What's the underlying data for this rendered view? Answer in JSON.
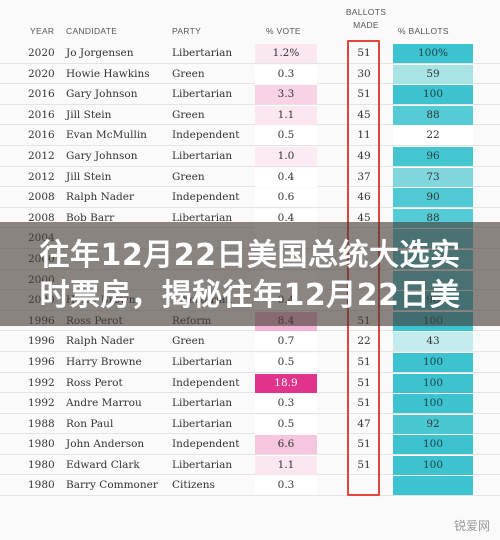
{
  "headers": {
    "year": "YEAR",
    "candidate": "CANDIDATE",
    "party": "PARTY",
    "vote": "% VOTE",
    "ballots_made_line1": "BALLOTS",
    "ballots_made_line2": "MADE",
    "ballots_pct": "% BALLOTS"
  },
  "rows": [
    {
      "year": "2020",
      "candidate": "Jo Jorgensen",
      "party": "Libertarian",
      "vote": "1.2%",
      "made": "51",
      "pct": "100%",
      "vote_color": "#fbe7f0",
      "pct_color": "#3cc3cf"
    },
    {
      "year": "2020",
      "candidate": "Howie Hawkins",
      "party": "Green",
      "vote": "0.3",
      "made": "30",
      "pct": "59",
      "vote_color": "#ffffff",
      "pct_color": "#a8e3e6"
    },
    {
      "year": "2016",
      "candidate": "Gary Johnson",
      "party": "Libertarian",
      "vote": "3.3",
      "made": "51",
      "pct": "100",
      "vote_color": "#f7d3e5",
      "pct_color": "#3cc3cf"
    },
    {
      "year": "2016",
      "candidate": "Jill Stein",
      "party": "Green",
      "vote": "1.1",
      "made": "45",
      "pct": "88",
      "vote_color": "#fbe7f0",
      "pct_color": "#55cbd5"
    },
    {
      "year": "2016",
      "candidate": "Evan McMullin",
      "party": "Independent",
      "vote": "0.5",
      "made": "11",
      "pct": "22",
      "vote_color": "#ffffff",
      "pct_color": "#ffffff"
    },
    {
      "year": "2012",
      "candidate": "Gary Johnson",
      "party": "Libertarian",
      "vote": "1.0",
      "made": "49",
      "pct": "96",
      "vote_color": "#fcebf3",
      "pct_color": "#44c6d1"
    },
    {
      "year": "2012",
      "candidate": "Jill Stein",
      "party": "Green",
      "vote": "0.4",
      "made": "37",
      "pct": "73",
      "vote_color": "#ffffff",
      "pct_color": "#7fd6dc"
    },
    {
      "year": "2008",
      "candidate": "Ralph Nader",
      "party": "Independent",
      "vote": "0.6",
      "made": "46",
      "pct": "90",
      "vote_color": "#ffffff",
      "pct_color": "#4fc9d3"
    },
    {
      "year": "2008",
      "candidate": "Bob Barr",
      "party": "Libertarian",
      "vote": "0.4",
      "made": "45",
      "pct": "88",
      "vote_color": "#ffffff",
      "pct_color": "#55cbd5"
    },
    {
      "year": "2004",
      "candidate": "",
      "party": "",
      "vote": "",
      "made": "",
      "pct": "",
      "vote_color": "#ffffff",
      "pct_color": "#55cbd5"
    },
    {
      "year": "2000",
      "candidate": "",
      "party": "",
      "vote": "",
      "made": "",
      "pct": "",
      "vote_color": "#ffffff",
      "pct_color": "#55cbd5"
    },
    {
      "year": "2000",
      "candidate": "",
      "party": "",
      "vote": "",
      "made": "",
      "pct": "",
      "vote_color": "#ffffff",
      "pct_color": "#55cbd5"
    },
    {
      "year": "2000",
      "candidate": "Harry Browne",
      "party": "Libertarian",
      "vote": "0.4",
      "made": "",
      "pct": "96",
      "vote_color": "#ffffff",
      "pct_color": "#44c6d1"
    },
    {
      "year": "1996",
      "candidate": "Ross Perot",
      "party": "Reform",
      "vote": "8.4",
      "made": "51",
      "pct": "100",
      "vote_color": "#f4b6d6",
      "pct_color": "#3cc3cf"
    },
    {
      "year": "1996",
      "candidate": "Ralph Nader",
      "party": "Green",
      "vote": "0.7",
      "made": "22",
      "pct": "43",
      "vote_color": "#ffffff",
      "pct_color": "#c4ecee"
    },
    {
      "year": "1996",
      "candidate": "Harry Browne",
      "party": "Libertarian",
      "vote": "0.5",
      "made": "51",
      "pct": "100",
      "vote_color": "#ffffff",
      "pct_color": "#3cc3cf"
    },
    {
      "year": "1992",
      "candidate": "Ross Perot",
      "party": "Independent",
      "vote": "18.9",
      "made": "51",
      "pct": "100",
      "vote_color": "#e0338c",
      "pct_color": "#3cc3cf"
    },
    {
      "year": "1992",
      "candidate": "Andre Marrou",
      "party": "Libertarian",
      "vote": "0.3",
      "made": "51",
      "pct": "100",
      "vote_color": "#ffffff",
      "pct_color": "#3cc3cf"
    },
    {
      "year": "1988",
      "candidate": "Ron Paul",
      "party": "Libertarian",
      "vote": "0.5",
      "made": "47",
      "pct": "92",
      "vote_color": "#ffffff",
      "pct_color": "#4ac8d2"
    },
    {
      "year": "1980",
      "candidate": "John Anderson",
      "party": "Independent",
      "vote": "6.6",
      "made": "51",
      "pct": "100",
      "vote_color": "#f6c6df",
      "pct_color": "#3cc3cf"
    },
    {
      "year": "1980",
      "candidate": "Edward Clark",
      "party": "Libertarian",
      "vote": "1.1",
      "made": "51",
      "pct": "100",
      "vote_color": "#fbe7f0",
      "pct_color": "#3cc3cf"
    },
    {
      "year": "1980",
      "candidate": "Barry Commoner",
      "party": "Citizens",
      "vote": "0.3",
      "made": "",
      "pct": "",
      "vote_color": "#ffffff",
      "pct_color": "#3cc3cf"
    }
  ],
  "overlay": {
    "line1": "往年12月22日美国总统大选实",
    "line2": "时票房，揭秘往年12月22日美"
  },
  "watermark": "锐爱网",
  "colors": {
    "frame": "#e0473a",
    "overlay_bg": "#463c37"
  }
}
